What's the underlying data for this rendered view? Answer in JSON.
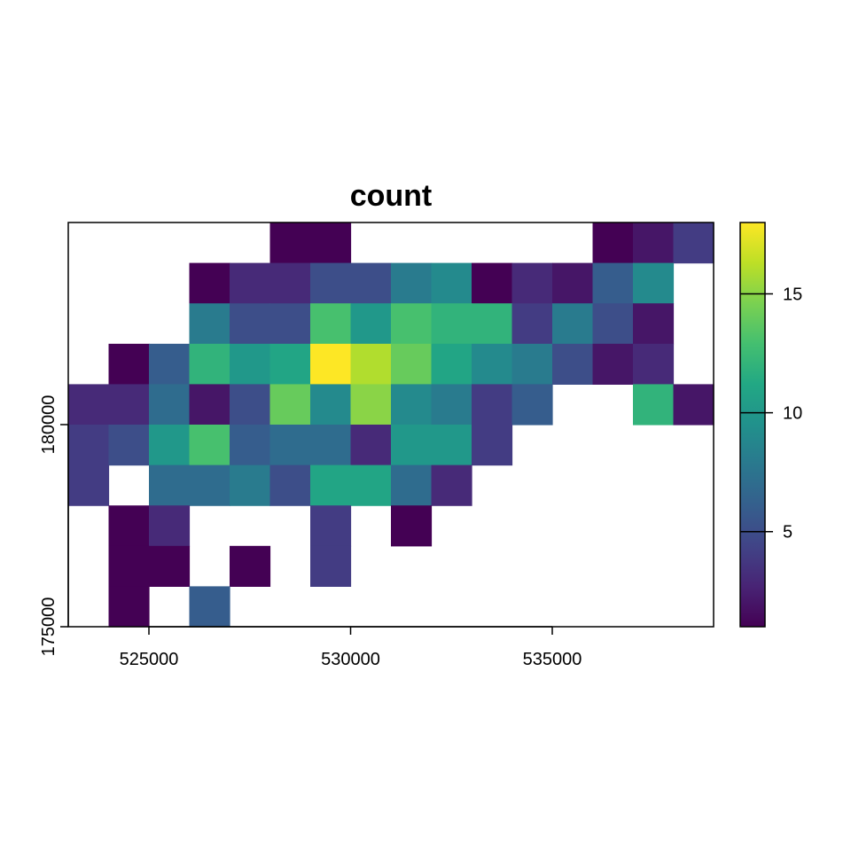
{
  "chart_data": {
    "type": "heatmap",
    "title": "count",
    "xlabel": "",
    "ylabel": "",
    "x_range": [
      523000,
      539000
    ],
    "y_range": [
      175000,
      185000
    ],
    "x_cell_edges": [
      523000,
      524000,
      525000,
      526000,
      527000,
      528000,
      529000,
      530000,
      531000,
      532000,
      533000,
      534000,
      535000,
      536000,
      537000,
      538000,
      539000
    ],
    "y_cell_edges": [
      185000,
      184000,
      183000,
      182000,
      181000,
      180000,
      179000,
      178000,
      177000,
      176000,
      175000
    ],
    "x_ticks": [
      {
        "value": 525000,
        "label": "525000"
      },
      {
        "value": 530000,
        "label": "530000"
      },
      {
        "value": 535000,
        "label": "535000"
      }
    ],
    "y_ticks": [
      {
        "value": 175000,
        "label": "175000"
      },
      {
        "value": 180000,
        "label": "180000"
      }
    ],
    "grid": false,
    "colorscale": "viridis",
    "color_range": [
      1,
      18
    ],
    "colorbar": {
      "position": "right",
      "ticks": [
        {
          "value": 5,
          "label": "5"
        },
        {
          "value": 10,
          "label": "10"
        },
        {
          "value": 15,
          "label": "15"
        }
      ]
    },
    "values": [
      [
        null,
        null,
        null,
        null,
        null,
        1,
        1,
        null,
        null,
        null,
        null,
        null,
        null,
        1,
        2,
        4
      ],
      [
        null,
        null,
        null,
        1,
        3,
        3,
        5,
        5,
        8,
        9,
        1,
        3,
        2,
        6,
        9,
        null
      ],
      [
        null,
        null,
        null,
        8,
        5,
        5,
        13,
        10,
        13,
        12,
        12,
        4,
        8,
        5,
        2,
        null
      ],
      [
        null,
        1,
        6,
        12,
        10,
        11,
        18,
        16,
        14,
        11,
        9,
        8,
        5,
        2,
        3,
        null
      ],
      [
        3,
        3,
        7,
        2,
        5,
        14,
        9,
        15,
        9,
        8,
        4,
        6,
        null,
        null,
        12,
        2
      ],
      [
        4,
        5,
        10,
        13,
        6,
        7,
        7,
        3,
        10,
        10,
        4,
        null,
        null,
        null,
        null,
        null
      ],
      [
        4,
        null,
        7,
        7,
        8,
        5,
        11,
        11,
        7,
        3,
        null,
        null,
        null,
        null,
        null,
        null
      ],
      [
        null,
        1,
        3,
        null,
        null,
        null,
        4,
        null,
        1,
        null,
        null,
        null,
        null,
        null,
        null,
        null
      ],
      [
        null,
        1,
        1,
        null,
        1,
        null,
        4,
        null,
        null,
        null,
        null,
        null,
        null,
        null,
        null,
        null
      ],
      [
        null,
        1,
        null,
        6,
        null,
        null,
        null,
        null,
        null,
        null,
        null,
        null,
        null,
        null,
        null,
        null
      ]
    ]
  }
}
